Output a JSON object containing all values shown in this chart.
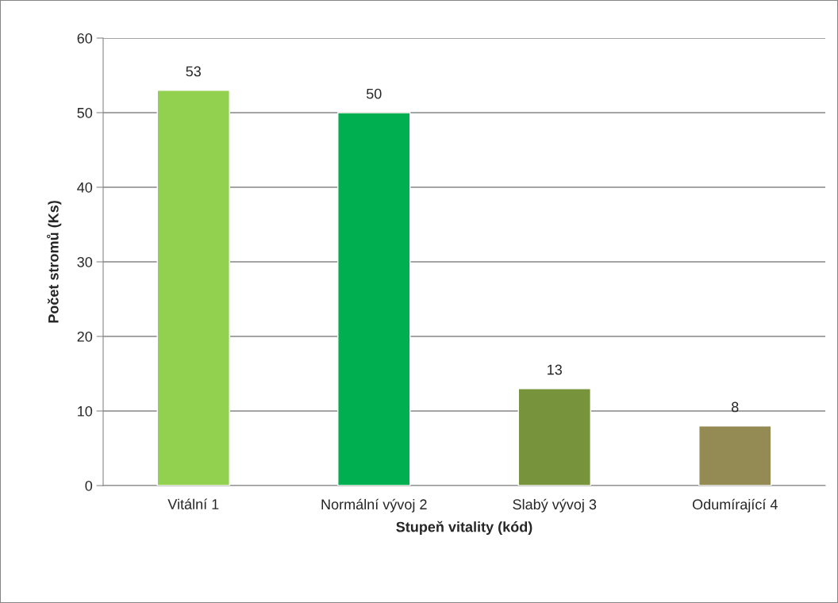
{
  "chart_data": {
    "type": "bar",
    "xlabel": "Stupeň vitality (kód)",
    "ylabel": "Počet stromů (Ks)",
    "categories": [
      "Vitální 1",
      "Normální vývoj 2",
      "Slabý vývoj 3",
      "Odumírající 4"
    ],
    "values": [
      53,
      50,
      13,
      8
    ],
    "colors": [
      "#92d050",
      "#00b050",
      "#77933c",
      "#948a54"
    ],
    "ylim": [
      0,
      60
    ],
    "yticks": [
      0,
      10,
      20,
      30,
      40,
      50,
      60
    ],
    "grid": "y",
    "data_labels": true
  }
}
